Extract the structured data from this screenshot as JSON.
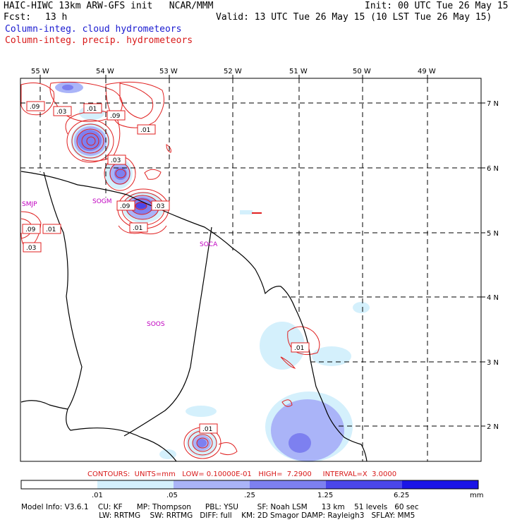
{
  "header": {
    "model_line": "HAIC-HIWC 13km ARW-GFS init   NCAR/MMM",
    "fcst_label": "Fcst:",
    "fcst_value": "13 h",
    "init": "Init: 00 UTC Tue 26 May 15",
    "valid": "Valid: 13 UTC Tue 26 May 15 (10 LST Tue 26 May 15)",
    "field_cloud": "Column-integ. cloud hydrometeors",
    "field_precip": "Column-integ. precip. hydrometeors"
  },
  "map": {
    "lon_labels": [
      "55 W",
      "54 W",
      "53 W",
      "52 W",
      "51 W",
      "50 W",
      "49 W"
    ],
    "lat_labels": [
      "7 N",
      "6 N",
      "5 N",
      "4 N",
      "3 N",
      "2 N"
    ],
    "station_labels": [
      "SMJP",
      "SOGM",
      "SOCA",
      "SOOS"
    ],
    "contour_labels": [
      ".09",
      ".03",
      ".01",
      ".09",
      ".01",
      ".03",
      ".09",
      ".03",
      ".01",
      ".09",
      ".01",
      ".03",
      ".01",
      ".01"
    ]
  },
  "contours_info": "CONTOURS:  UNITS=mm   LOW= 0.10000E-01   HIGH=  7.2900     INTERVAL=X  3.0000",
  "colorbar": {
    "labels": [
      ".01",
      ".05",
      ".25",
      "1.25",
      "6.25"
    ],
    "unit": "mm",
    "colors": [
      "#ffffff",
      "#d4f0fc",
      "#aab4f8",
      "#7d80f0",
      "#4a46ea",
      "#1a14e6"
    ]
  },
  "model_info": {
    "line1": "Model Info: V3.6.1    CU: KF      MP: Thompson      PBL: YSU        SF: Noah LSM      13 km    51 levels   60 sec",
    "line2": "                                 LW: RRTMG    SW: RRTMG   DIFF: full    KM: 2D Smagor DAMP: Rayleigh3   SFLAY: MM5"
  },
  "colors": {
    "title_blue": "#1a1ad0",
    "title_red": "#d81818",
    "station_magenta": "#c000c0"
  }
}
